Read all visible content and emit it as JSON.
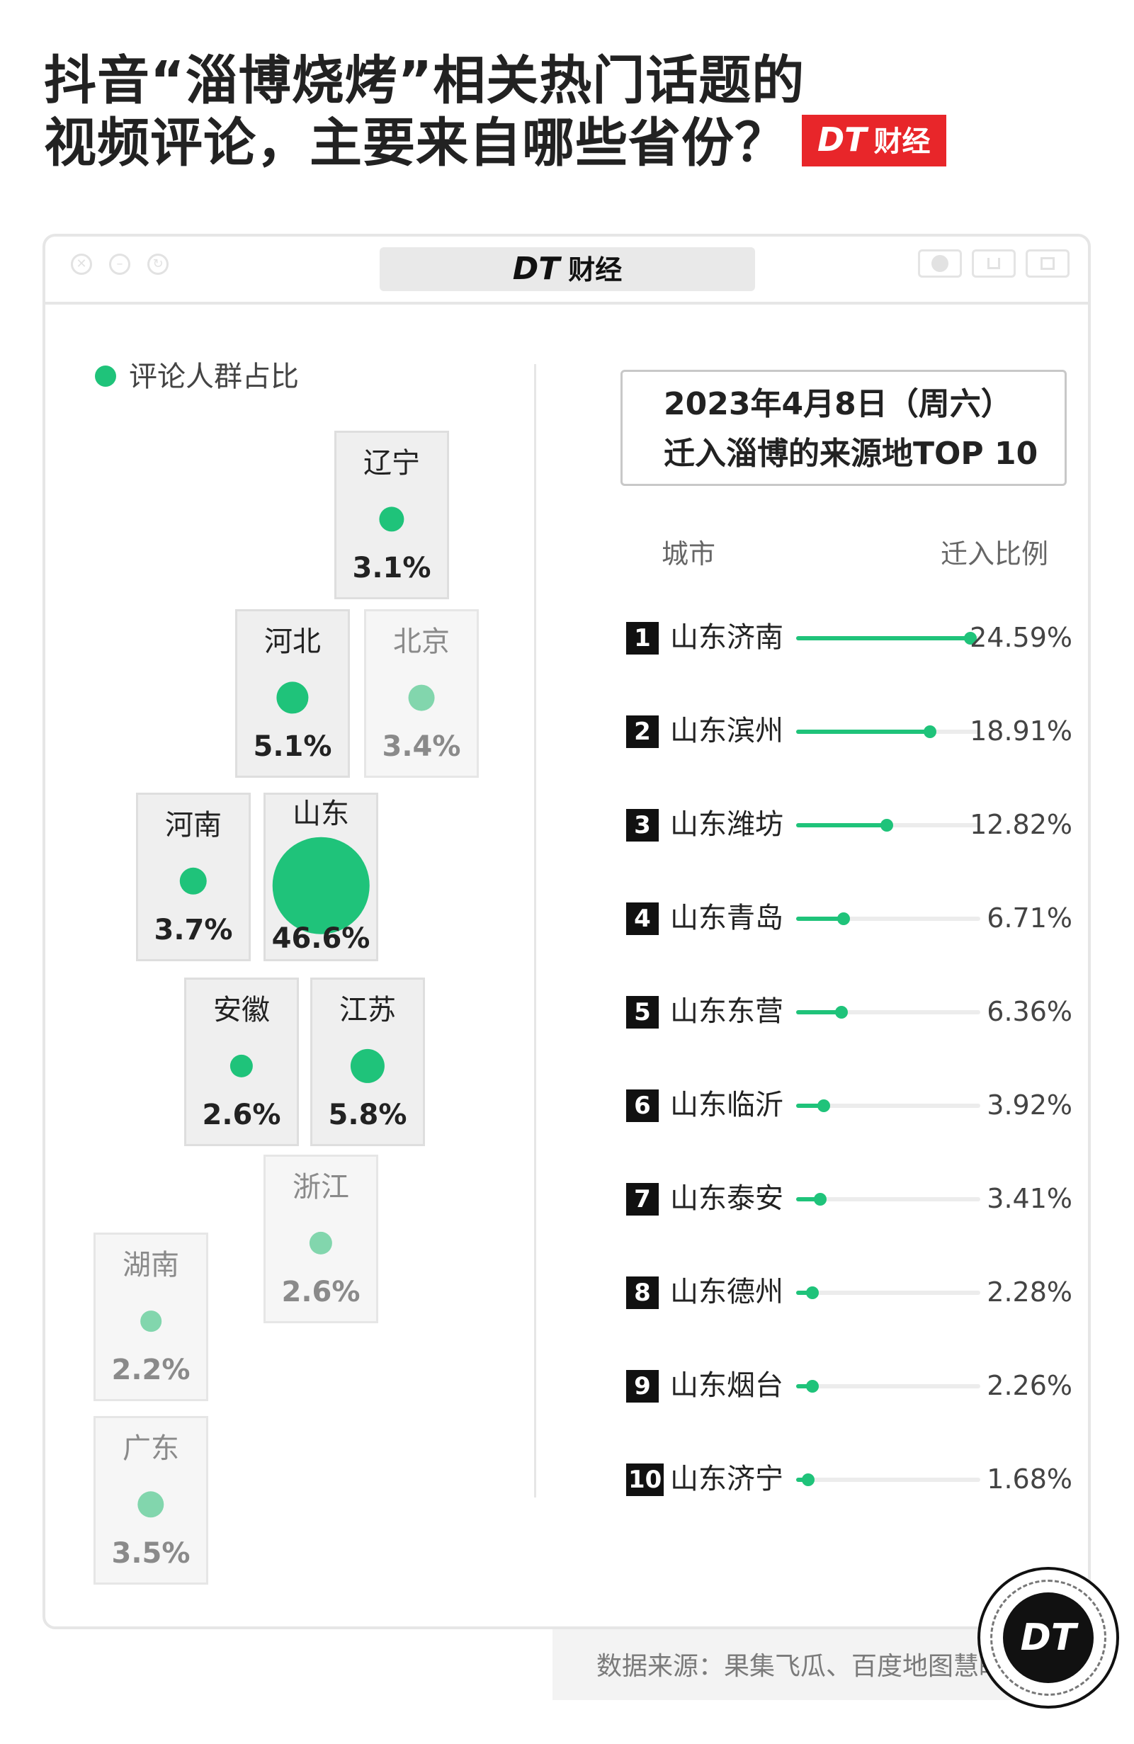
{
  "header": {
    "title_line1": "抖音“淄博烧烤”相关热门话题的",
    "title_line2": "视频评论，主要来自哪些省份？",
    "badge_dt": "DT",
    "badge_text": "财经"
  },
  "window": {
    "title_dt": "DT",
    "title_text": "财经"
  },
  "legend": {
    "label": "评论人群占比",
    "color": "#1fc37a"
  },
  "chart_data": [
    {
      "type": "bubble-map",
      "legend": "评论人群占比",
      "unit": "%",
      "provinces": [
        {
          "name": "辽宁",
          "value": 3.1,
          "label": "3.1%",
          "highlighted": true
        },
        {
          "name": "河北",
          "value": 5.1,
          "label": "5.1%",
          "highlighted": true
        },
        {
          "name": "北京",
          "value": 3.4,
          "label": "3.4%",
          "highlighted": false
        },
        {
          "name": "河南",
          "value": 3.7,
          "label": "3.7%",
          "highlighted": true
        },
        {
          "name": "山东",
          "value": 46.6,
          "label": "46.6%",
          "highlighted": true
        },
        {
          "name": "安徽",
          "value": 2.6,
          "label": "2.6%",
          "highlighted": true
        },
        {
          "name": "江苏",
          "value": 5.8,
          "label": "5.8%",
          "highlighted": true
        },
        {
          "name": "浙江",
          "value": 2.6,
          "label": "2.6%",
          "highlighted": false
        },
        {
          "name": "湖南",
          "value": 2.2,
          "label": "2.2%",
          "highlighted": false
        },
        {
          "name": "广东",
          "value": 3.5,
          "label": "3.5%",
          "highlighted": false
        }
      ]
    },
    {
      "type": "bar",
      "title_line1": "2023年4月8日（周六）",
      "title_line2": "迁入淄博的来源地TOP 10",
      "column_city": "城市",
      "column_ratio": "迁入比例",
      "xlim": [
        0,
        26
      ],
      "rows": [
        {
          "rank": "1",
          "city": "山东济南",
          "value": 24.59,
          "label": "24.59%"
        },
        {
          "rank": "2",
          "city": "山东滨州",
          "value": 18.91,
          "label": "18.91%"
        },
        {
          "rank": "3",
          "city": "山东潍坊",
          "value": 12.82,
          "label": "12.82%"
        },
        {
          "rank": "4",
          "city": "山东青岛",
          "value": 6.71,
          "label": "6.71%"
        },
        {
          "rank": "5",
          "city": "山东东营",
          "value": 6.36,
          "label": "6.36%"
        },
        {
          "rank": "6",
          "city": "山东临沂",
          "value": 3.92,
          "label": "3.92%"
        },
        {
          "rank": "7",
          "city": "山东泰安",
          "value": 3.41,
          "label": "3.41%"
        },
        {
          "rank": "8",
          "city": "山东德州",
          "value": 2.28,
          "label": "2.28%"
        },
        {
          "rank": "9",
          "city": "山东烟台",
          "value": 2.26,
          "label": "2.26%"
        },
        {
          "rank": "10",
          "city": "山东济宁",
          "value": 1.68,
          "label": "1.68%"
        }
      ]
    }
  ],
  "footer": {
    "source": "数据来源：果集飞瓜、百度地图慧眼",
    "logo_text": "DT"
  },
  "icons": [
    "close-icon",
    "minimize-icon",
    "maximize-icon",
    "record-icon",
    "share-icon",
    "copy-icon"
  ]
}
